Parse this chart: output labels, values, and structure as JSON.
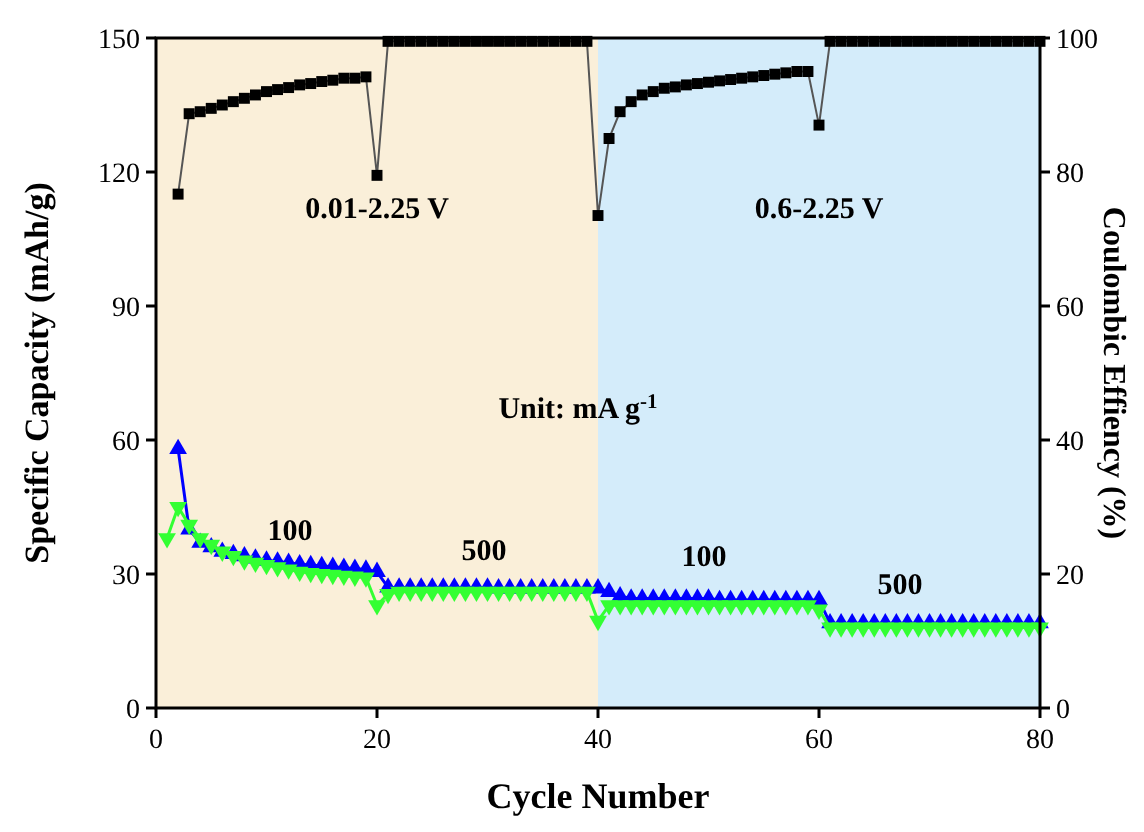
{
  "chart_data": {
    "type": "line",
    "xlabel": "Cycle Number",
    "ylabel": "Specific Capacity (mAh/g)",
    "y2label": "Coulombic Effiency (%)",
    "x": [
      1,
      2,
      3,
      4,
      5,
      6,
      7,
      8,
      9,
      10,
      11,
      12,
      13,
      14,
      15,
      16,
      17,
      18,
      19,
      20,
      21,
      22,
      23,
      24,
      25,
      26,
      27,
      28,
      29,
      30,
      31,
      32,
      33,
      34,
      35,
      36,
      37,
      38,
      39,
      40,
      41,
      42,
      43,
      44,
      45,
      46,
      47,
      48,
      49,
      50,
      51,
      52,
      53,
      54,
      55,
      56,
      57,
      58,
      59,
      60,
      61,
      62,
      63,
      64,
      65,
      66,
      67,
      68,
      69,
      70,
      71,
      72,
      73,
      74,
      75,
      76,
      77,
      78,
      79,
      80
    ],
    "xlim": [
      0,
      80
    ],
    "xticks": [
      0,
      20,
      40,
      60,
      80
    ],
    "ylim": [
      0,
      150
    ],
    "yticks": [
      0,
      30,
      60,
      90,
      120,
      150
    ],
    "y2lim": [
      0,
      100
    ],
    "y2ticks": [
      0,
      20,
      40,
      60,
      80,
      100
    ],
    "line_style": "solid",
    "series": [
      {
        "color": "#0000ff",
        "marker": "triangle",
        "values": [
          null,
          58,
          40,
          37,
          36,
          35,
          34.5,
          34,
          33.5,
          33,
          32.8,
          32.5,
          32.2,
          32,
          31.8,
          31.6,
          31.4,
          31.2,
          31,
          30.5,
          27,
          27,
          27,
          27,
          27,
          27,
          27,
          27,
          27,
          27,
          26.8,
          26.8,
          26.8,
          26.8,
          26.8,
          26.8,
          26.8,
          26.8,
          26.8,
          26.8,
          26,
          25,
          24.5,
          24.5,
          24.5,
          24.5,
          24.5,
          24.5,
          24.5,
          24.5,
          24.2,
          24.2,
          24.2,
          24.2,
          24.2,
          24.2,
          24.2,
          24.2,
          24.2,
          24.2,
          19,
          19,
          19,
          19,
          19,
          19,
          19,
          19,
          19,
          19,
          19,
          19,
          19,
          19,
          19,
          19,
          19,
          19,
          19,
          19
        ]
      },
      {
        "color": "#33ff33",
        "marker": "triangle-down",
        "values": [
          38,
          45,
          41,
          38,
          36.5,
          35,
          34,
          33,
          32.5,
          32,
          31.5,
          31,
          30.5,
          30.2,
          30,
          29.8,
          29.6,
          29.4,
          29.2,
          23,
          25.5,
          26,
          26,
          26,
          26,
          26,
          26,
          26,
          26,
          26,
          26,
          26,
          26,
          26,
          26,
          26,
          26,
          26,
          26,
          19.5,
          23,
          23,
          23,
          23,
          23,
          23,
          23,
          23,
          23,
          23,
          23,
          23,
          23,
          23,
          23,
          23,
          23,
          23,
          23,
          22,
          18,
          18,
          18,
          18,
          18,
          18,
          18,
          18,
          18,
          18,
          18,
          18,
          18,
          18,
          18,
          18,
          18,
          18,
          18,
          18
        ]
      },
      {
        "color": "#000000",
        "marker": "square",
        "axis": "y2",
        "values": [
          null,
          76.7,
          88.7,
          89,
          89.5,
          90,
          90.5,
          91,
          91.5,
          92,
          92.3,
          92.6,
          93,
          93.2,
          93.5,
          93.7,
          94,
          94,
          94.2,
          79.5,
          99.5,
          99.5,
          99.5,
          99.5,
          99.5,
          99.5,
          99.5,
          99.5,
          99.5,
          99.5,
          99.5,
          99.5,
          99.5,
          99.5,
          99.5,
          99.5,
          99.5,
          99.5,
          99.5,
          73.5,
          85,
          89,
          90.5,
          91.5,
          92,
          92.5,
          92.7,
          93,
          93.2,
          93.4,
          93.6,
          93.8,
          94,
          94.2,
          94.4,
          94.6,
          94.8,
          95,
          95,
          87,
          99.5,
          99.5,
          99.5,
          99.5,
          99.5,
          99.5,
          99.5,
          99.5,
          99.5,
          99.5,
          99.5,
          99.5,
          99.5,
          99.5,
          99.5,
          99.5,
          99.5,
          99.5,
          99.5,
          99.5
        ]
      }
    ],
    "bands": [
      {
        "axis": "x",
        "from": 0,
        "to": 40,
        "label": "0.01-2.25 V",
        "color": "#faefd9"
      },
      {
        "axis": "x",
        "from": 40,
        "to": 80,
        "label": "0.6-2.25 V",
        "color": "#d4ecfa"
      }
    ],
    "annotations": [
      "Unit: mA g$^{-1}$",
      "100",
      "500",
      "100",
      "500"
    ]
  }
}
